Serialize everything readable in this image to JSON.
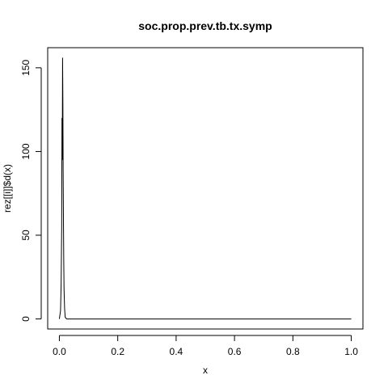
{
  "chart_data": {
    "type": "line",
    "title": "soc.prop.prev.tb.tx.symp",
    "xlabel": "x",
    "ylabel": "rez[[i]]$d(x)",
    "xlim": [
      -0.04,
      1.04
    ],
    "ylim": [
      -6,
      162
    ],
    "x_ticks": [
      0.0,
      0.2,
      0.4,
      0.6,
      0.8,
      1.0
    ],
    "x_tick_labels": [
      "0.0",
      "0.2",
      "0.4",
      "0.6",
      "0.8",
      "1.0"
    ],
    "y_ticks": [
      0,
      50,
      100,
      150
    ],
    "y_tick_labels": [
      "0",
      "50",
      "100",
      "150"
    ],
    "grid": false,
    "legend": "none",
    "line_color": "#000000",
    "series": [
      {
        "x": [
          0.0,
          0.004,
          0.006,
          0.008,
          0.009,
          0.01,
          0.011,
          0.012,
          0.013,
          0.014,
          0.015,
          0.016,
          0.018,
          0.02,
          0.025,
          0.05,
          0.1,
          0.2,
          0.4,
          0.6,
          0.8,
          1.0
        ],
        "y": [
          0,
          5,
          20,
          55,
          120,
          95,
          156,
          130,
          88,
          60,
          35,
          18,
          6,
          1,
          0,
          0,
          0,
          0,
          0,
          0,
          0,
          0
        ]
      }
    ]
  }
}
